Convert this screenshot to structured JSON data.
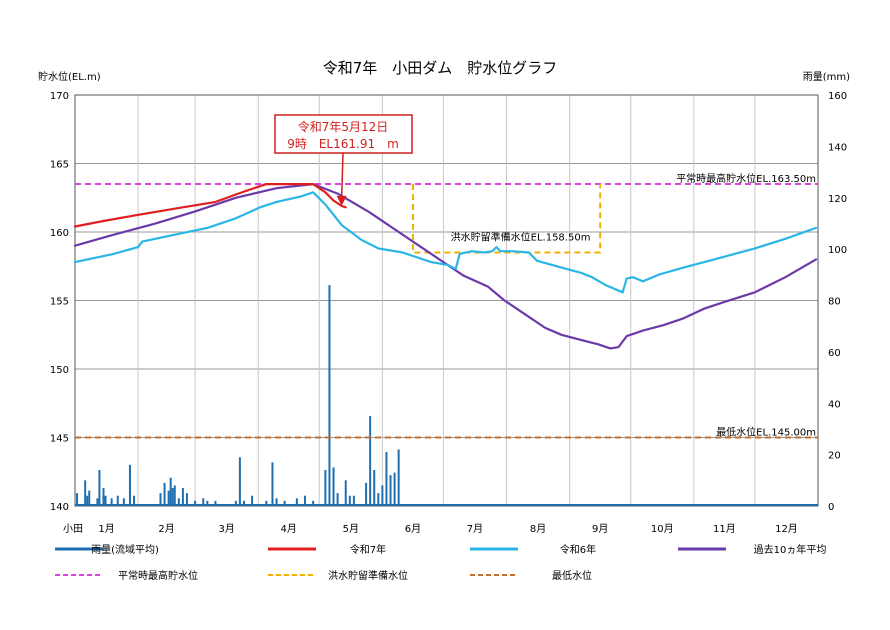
{
  "chart_data": {
    "type": "line",
    "title": "令和7年　小田ダム　貯水位グラフ",
    "ylabel_left": "貯水位(EL.m)",
    "ylabel_right": "雨量(mm)",
    "xlabel": "",
    "x_prefix": "小田",
    "months": [
      "1月",
      "2月",
      "3月",
      "4月",
      "5月",
      "6月",
      "7月",
      "8月",
      "9月",
      "10月",
      "11月",
      "12月"
    ],
    "ylim_left": [
      140,
      170
    ],
    "yticks_left": [
      "140",
      "145",
      "150",
      "155",
      "160",
      "165",
      "170"
    ],
    "ylim_right": [
      0,
      160
    ],
    "yticks_right": [
      "0",
      "20",
      "40",
      "60",
      "80",
      "100",
      "120",
      "140",
      "160"
    ],
    "grid": true,
    "legend_position": "bottom",
    "x_unit": "day of year",
    "callout": {
      "line1": "令和7年5月12日",
      "line2": "9時　EL161.91　m",
      "target_x": 132,
      "target_y": 161.91
    },
    "reference_lines": [
      {
        "name": "平常時最高貯水位",
        "label": "平常時最高貯水位EL.163.50m",
        "y": 163.5,
        "color": "#e040e0"
      },
      {
        "name": "洪水貯留準備水位",
        "label": "洪水貯留準備水位EL.158.50m",
        "y": 158.5,
        "x_range": [
          167,
          259
        ],
        "outer_y": 163.5,
        "color": "#f0b000"
      },
      {
        "name": "最低水位",
        "label": "最低水位EL.145.00m",
        "y": 145.0,
        "color": "#c07030"
      }
    ],
    "series": [
      {
        "name": "令和7年",
        "color": "#e02020",
        "points": [
          [
            1,
            160.4
          ],
          [
            15,
            160.8
          ],
          [
            30,
            161.2
          ],
          [
            50,
            161.7
          ],
          [
            70,
            162.2
          ],
          [
            85,
            163.0
          ],
          [
            95,
            163.5
          ],
          [
            110,
            163.5
          ],
          [
            118,
            163.5
          ],
          [
            124,
            162.9
          ],
          [
            128,
            162.3
          ],
          [
            132,
            161.9
          ],
          [
            134,
            161.8
          ]
        ]
      },
      {
        "name": "令和6年",
        "color": "#29b6e6",
        "points": [
          [
            1,
            157.8
          ],
          [
            20,
            158.4
          ],
          [
            32,
            158.9
          ],
          [
            34,
            159.3
          ],
          [
            50,
            159.8
          ],
          [
            66,
            160.3
          ],
          [
            80,
            161.0
          ],
          [
            92,
            161.8
          ],
          [
            100,
            162.2
          ],
          [
            112,
            162.6
          ],
          [
            118,
            162.9
          ],
          [
            124,
            162.0
          ],
          [
            132,
            160.5
          ],
          [
            142,
            159.4
          ],
          [
            150,
            158.8
          ],
          [
            162,
            158.5
          ],
          [
            170,
            158.1
          ],
          [
            176,
            157.8
          ],
          [
            184,
            157.6
          ],
          [
            188,
            157.3
          ],
          [
            190,
            158.4
          ],
          [
            196,
            158.6
          ],
          [
            202,
            158.5
          ],
          [
            206,
            158.6
          ],
          [
            208,
            158.9
          ],
          [
            210,
            158.6
          ],
          [
            216,
            158.6
          ],
          [
            224,
            158.5
          ],
          [
            228,
            157.9
          ],
          [
            240,
            157.4
          ],
          [
            250,
            157.0
          ],
          [
            255,
            156.7
          ],
          [
            262,
            156.1
          ],
          [
            270,
            155.6
          ],
          [
            272,
            156.6
          ],
          [
            275,
            156.7
          ],
          [
            280,
            156.4
          ],
          [
            288,
            156.9
          ],
          [
            300,
            157.4
          ],
          [
            315,
            158.0
          ],
          [
            335,
            158.8
          ],
          [
            350,
            159.5
          ],
          [
            365,
            160.3
          ]
        ]
      },
      {
        "name": "過去10ヵ年平均",
        "color": "#6a3aa8",
        "points": [
          [
            1,
            159.0
          ],
          [
            20,
            159.8
          ],
          [
            40,
            160.6
          ],
          [
            60,
            161.5
          ],
          [
            80,
            162.5
          ],
          [
            100,
            163.2
          ],
          [
            118,
            163.5
          ],
          [
            130,
            162.8
          ],
          [
            145,
            161.5
          ],
          [
            160,
            160.0
          ],
          [
            172,
            158.8
          ],
          [
            182,
            157.8
          ],
          [
            192,
            156.8
          ],
          [
            204,
            156.0
          ],
          [
            212,
            155.0
          ],
          [
            222,
            154.0
          ],
          [
            232,
            153.0
          ],
          [
            240,
            152.5
          ],
          [
            250,
            152.1
          ],
          [
            258,
            151.8
          ],
          [
            264,
            151.5
          ],
          [
            268,
            151.6
          ],
          [
            272,
            152.4
          ],
          [
            280,
            152.8
          ],
          [
            290,
            153.2
          ],
          [
            300,
            153.7
          ],
          [
            310,
            154.4
          ],
          [
            320,
            154.9
          ],
          [
            335,
            155.6
          ],
          [
            350,
            156.7
          ],
          [
            365,
            158.0
          ]
        ]
      },
      {
        "name": "雨量(流域平均)",
        "type": "bar",
        "axis": "right",
        "color": "#1f6fb0",
        "points": [
          [
            2,
            5
          ],
          [
            6,
            10
          ],
          [
            7,
            4
          ],
          [
            8,
            6
          ],
          [
            12,
            3
          ],
          [
            13,
            14
          ],
          [
            15,
            7
          ],
          [
            16,
            4
          ],
          [
            19,
            3
          ],
          [
            22,
            4
          ],
          [
            25,
            3
          ],
          [
            28,
            16
          ],
          [
            30,
            4
          ],
          [
            43,
            5
          ],
          [
            45,
            9
          ],
          [
            47,
            6
          ],
          [
            48,
            11
          ],
          [
            49,
            7
          ],
          [
            50,
            8
          ],
          [
            52,
            3
          ],
          [
            54,
            7
          ],
          [
            56,
            5
          ],
          [
            60,
            2
          ],
          [
            64,
            3
          ],
          [
            66,
            2
          ],
          [
            70,
            2
          ],
          [
            80,
            2
          ],
          [
            82,
            19
          ],
          [
            84,
            2
          ],
          [
            88,
            4
          ],
          [
            95,
            2
          ],
          [
            98,
            17
          ],
          [
            100,
            3
          ],
          [
            104,
            2
          ],
          [
            110,
            3
          ],
          [
            114,
            4
          ],
          [
            118,
            2
          ],
          [
            124,
            14
          ],
          [
            126,
            86
          ],
          [
            128,
            15
          ],
          [
            130,
            5
          ],
          [
            134,
            10
          ],
          [
            136,
            4
          ],
          [
            138,
            4
          ],
          [
            144,
            9
          ],
          [
            146,
            35
          ],
          [
            148,
            14
          ],
          [
            150,
            5
          ],
          [
            152,
            8
          ],
          [
            154,
            21
          ],
          [
            156,
            12
          ],
          [
            158,
            13
          ],
          [
            160,
            22
          ]
        ]
      }
    ],
    "legend": [
      {
        "label": "雨量(流域平均)",
        "color": "#1f6fb0",
        "dash": false
      },
      {
        "label": "令和7年",
        "color": "#e02020",
        "dash": false
      },
      {
        "label": "令和6年",
        "color": "#29b6e6",
        "dash": false
      },
      {
        "label": "過去10ヵ年平均",
        "color": "#6a3aa8",
        "dash": false
      },
      {
        "label": "平常時最高貯水位",
        "color": "#e040e0",
        "dash": true
      },
      {
        "label": "洪水貯留準備水位",
        "color": "#f0b000",
        "dash": true
      },
      {
        "label": "最低水位",
        "color": "#c07030",
        "dash": true
      }
    ]
  }
}
